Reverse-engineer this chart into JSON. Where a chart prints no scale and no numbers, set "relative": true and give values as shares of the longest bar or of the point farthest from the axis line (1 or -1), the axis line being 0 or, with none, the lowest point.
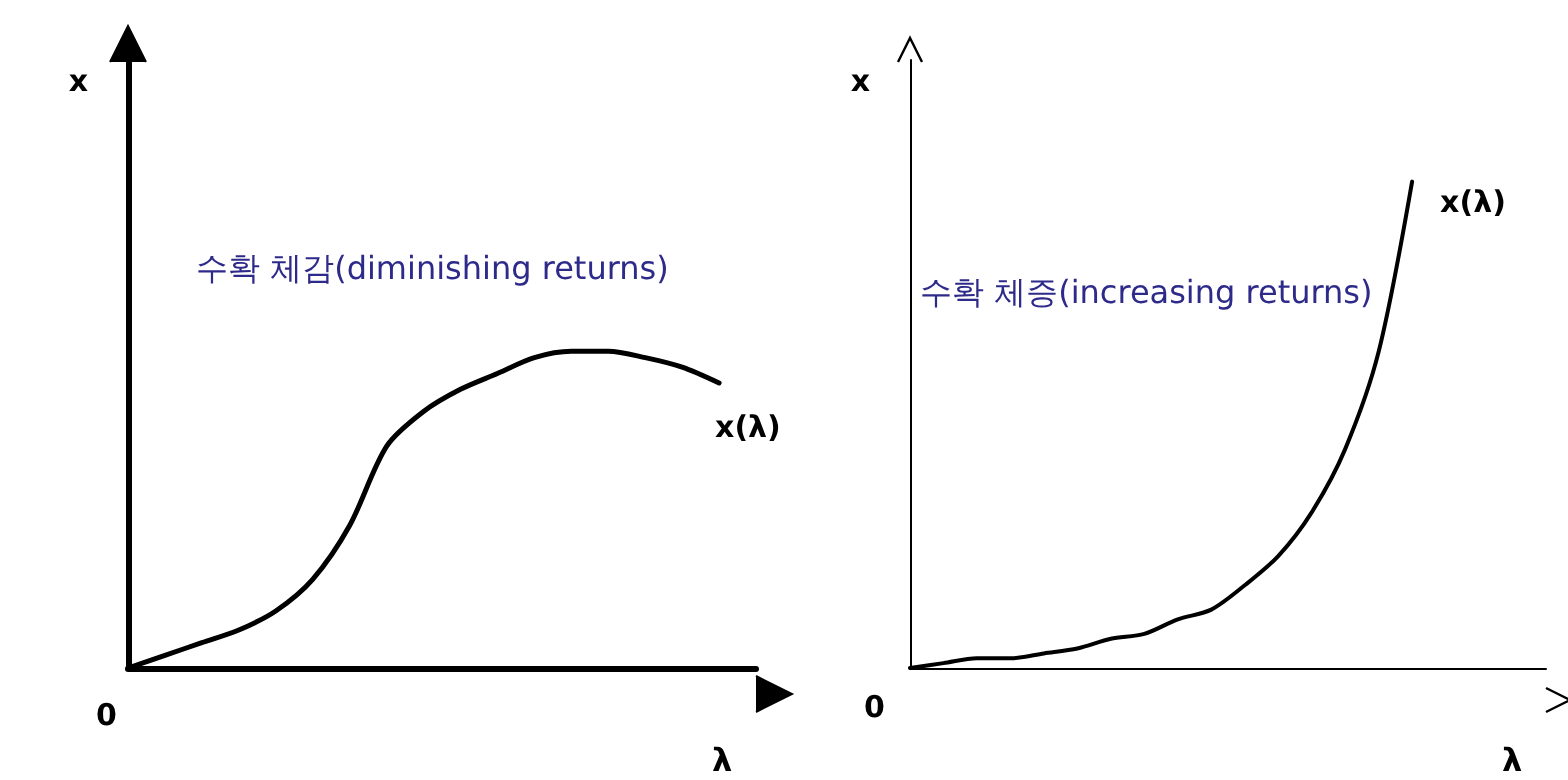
{
  "chart_data": [
    {
      "type": "line",
      "relative": true,
      "xlabel": "λ",
      "ylabel": "x",
      "categories": [
        null,
        null,
        null,
        null,
        null,
        null,
        null,
        null,
        null,
        null,
        null,
        null,
        null,
        null,
        null,
        null,
        null,
        null
      ],
      "grid": false,
      "legend": false,
      "marker": "none",
      "line_style": "solid",
      "annotations": [
        "0",
        "수확 체감(diminishing returns)"
      ],
      "series": [
        {
          "name": "x(λ)",
          "color": "#000000",
          "values": [
            0,
            0.04,
            0.08,
            0.12,
            0.18,
            0.28,
            0.45,
            0.7,
            0.81,
            0.88,
            0.93,
            0.98,
            1,
            1,
            0.98,
            0.95,
            0.9,
            null
          ]
        }
      ]
    },
    {
      "type": "line",
      "relative": true,
      "xlabel": "λ",
      "ylabel": "x",
      "categories": [
        null,
        null,
        null,
        null,
        null,
        null,
        null,
        null,
        null,
        null,
        null,
        null,
        null,
        null,
        null,
        null,
        null,
        null,
        null,
        null
      ],
      "grid": false,
      "legend": false,
      "marker": "none",
      "line_style": "solid",
      "annotations": [
        "0",
        "수확 체증(increasing returns)"
      ],
      "series": [
        {
          "name": "x(λ)",
          "color": "#000000",
          "values": [
            0,
            0.01,
            0.02,
            0.02,
            0.03,
            0.04,
            0.06,
            0.07,
            0.1,
            0.12,
            0.17,
            0.23,
            0.32,
            0.45,
            0.65,
            1,
            null,
            null,
            null,
            null
          ]
        }
      ]
    }
  ]
}
